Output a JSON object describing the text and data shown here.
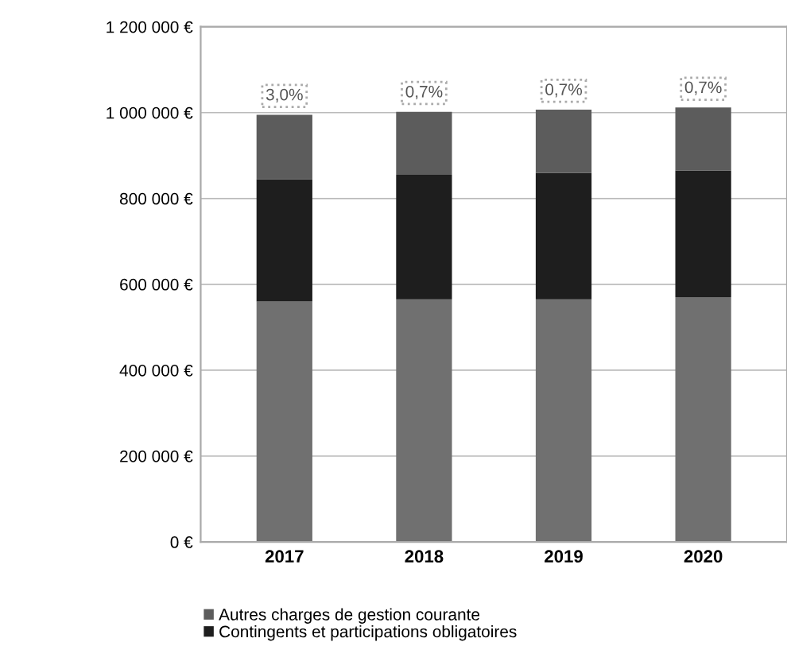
{
  "chart_data": {
    "type": "bar",
    "stacked": true,
    "categories": [
      "2017",
      "2018",
      "2019",
      "2020"
    ],
    "series": [
      {
        "color": "#707070",
        "values": [
          560000,
          565000,
          565000,
          570000
        ]
      },
      {
        "name": "Contingents et participations obligatoires",
        "color": "#1e1e1e",
        "values": [
          285000,
          290000,
          295000,
          295000
        ]
      },
      {
        "name": "Autres charges de gestion courante",
        "color": "#5c5c5c",
        "values": [
          150000,
          147000,
          147000,
          147000
        ]
      }
    ],
    "ylim": [
      0,
      1200000
    ],
    "yticks": [
      {
        "value": 0,
        "label": "0 €"
      },
      {
        "value": 200000,
        "label": "200 000 €"
      },
      {
        "value": 400000,
        "label": "400 000 €"
      },
      {
        "value": 600000,
        "label": "600 000 €"
      },
      {
        "value": 800000,
        "label": "800 000 €"
      },
      {
        "value": 1000000,
        "label": "1 000 000 €"
      },
      {
        "value": 1200000,
        "label": "1 200 000 €"
      }
    ],
    "annotations": [
      {
        "text": "3,0%",
        "x": "2017",
        "y": 995000
      },
      {
        "text": "0,7%",
        "x": "2018",
        "y": 1002000
      },
      {
        "text": "0,7%",
        "x": "2019",
        "y": 1007000
      },
      {
        "text": "0,7%",
        "x": "2020",
        "y": 1012000
      }
    ],
    "grid": "y",
    "legend": "bottom"
  }
}
